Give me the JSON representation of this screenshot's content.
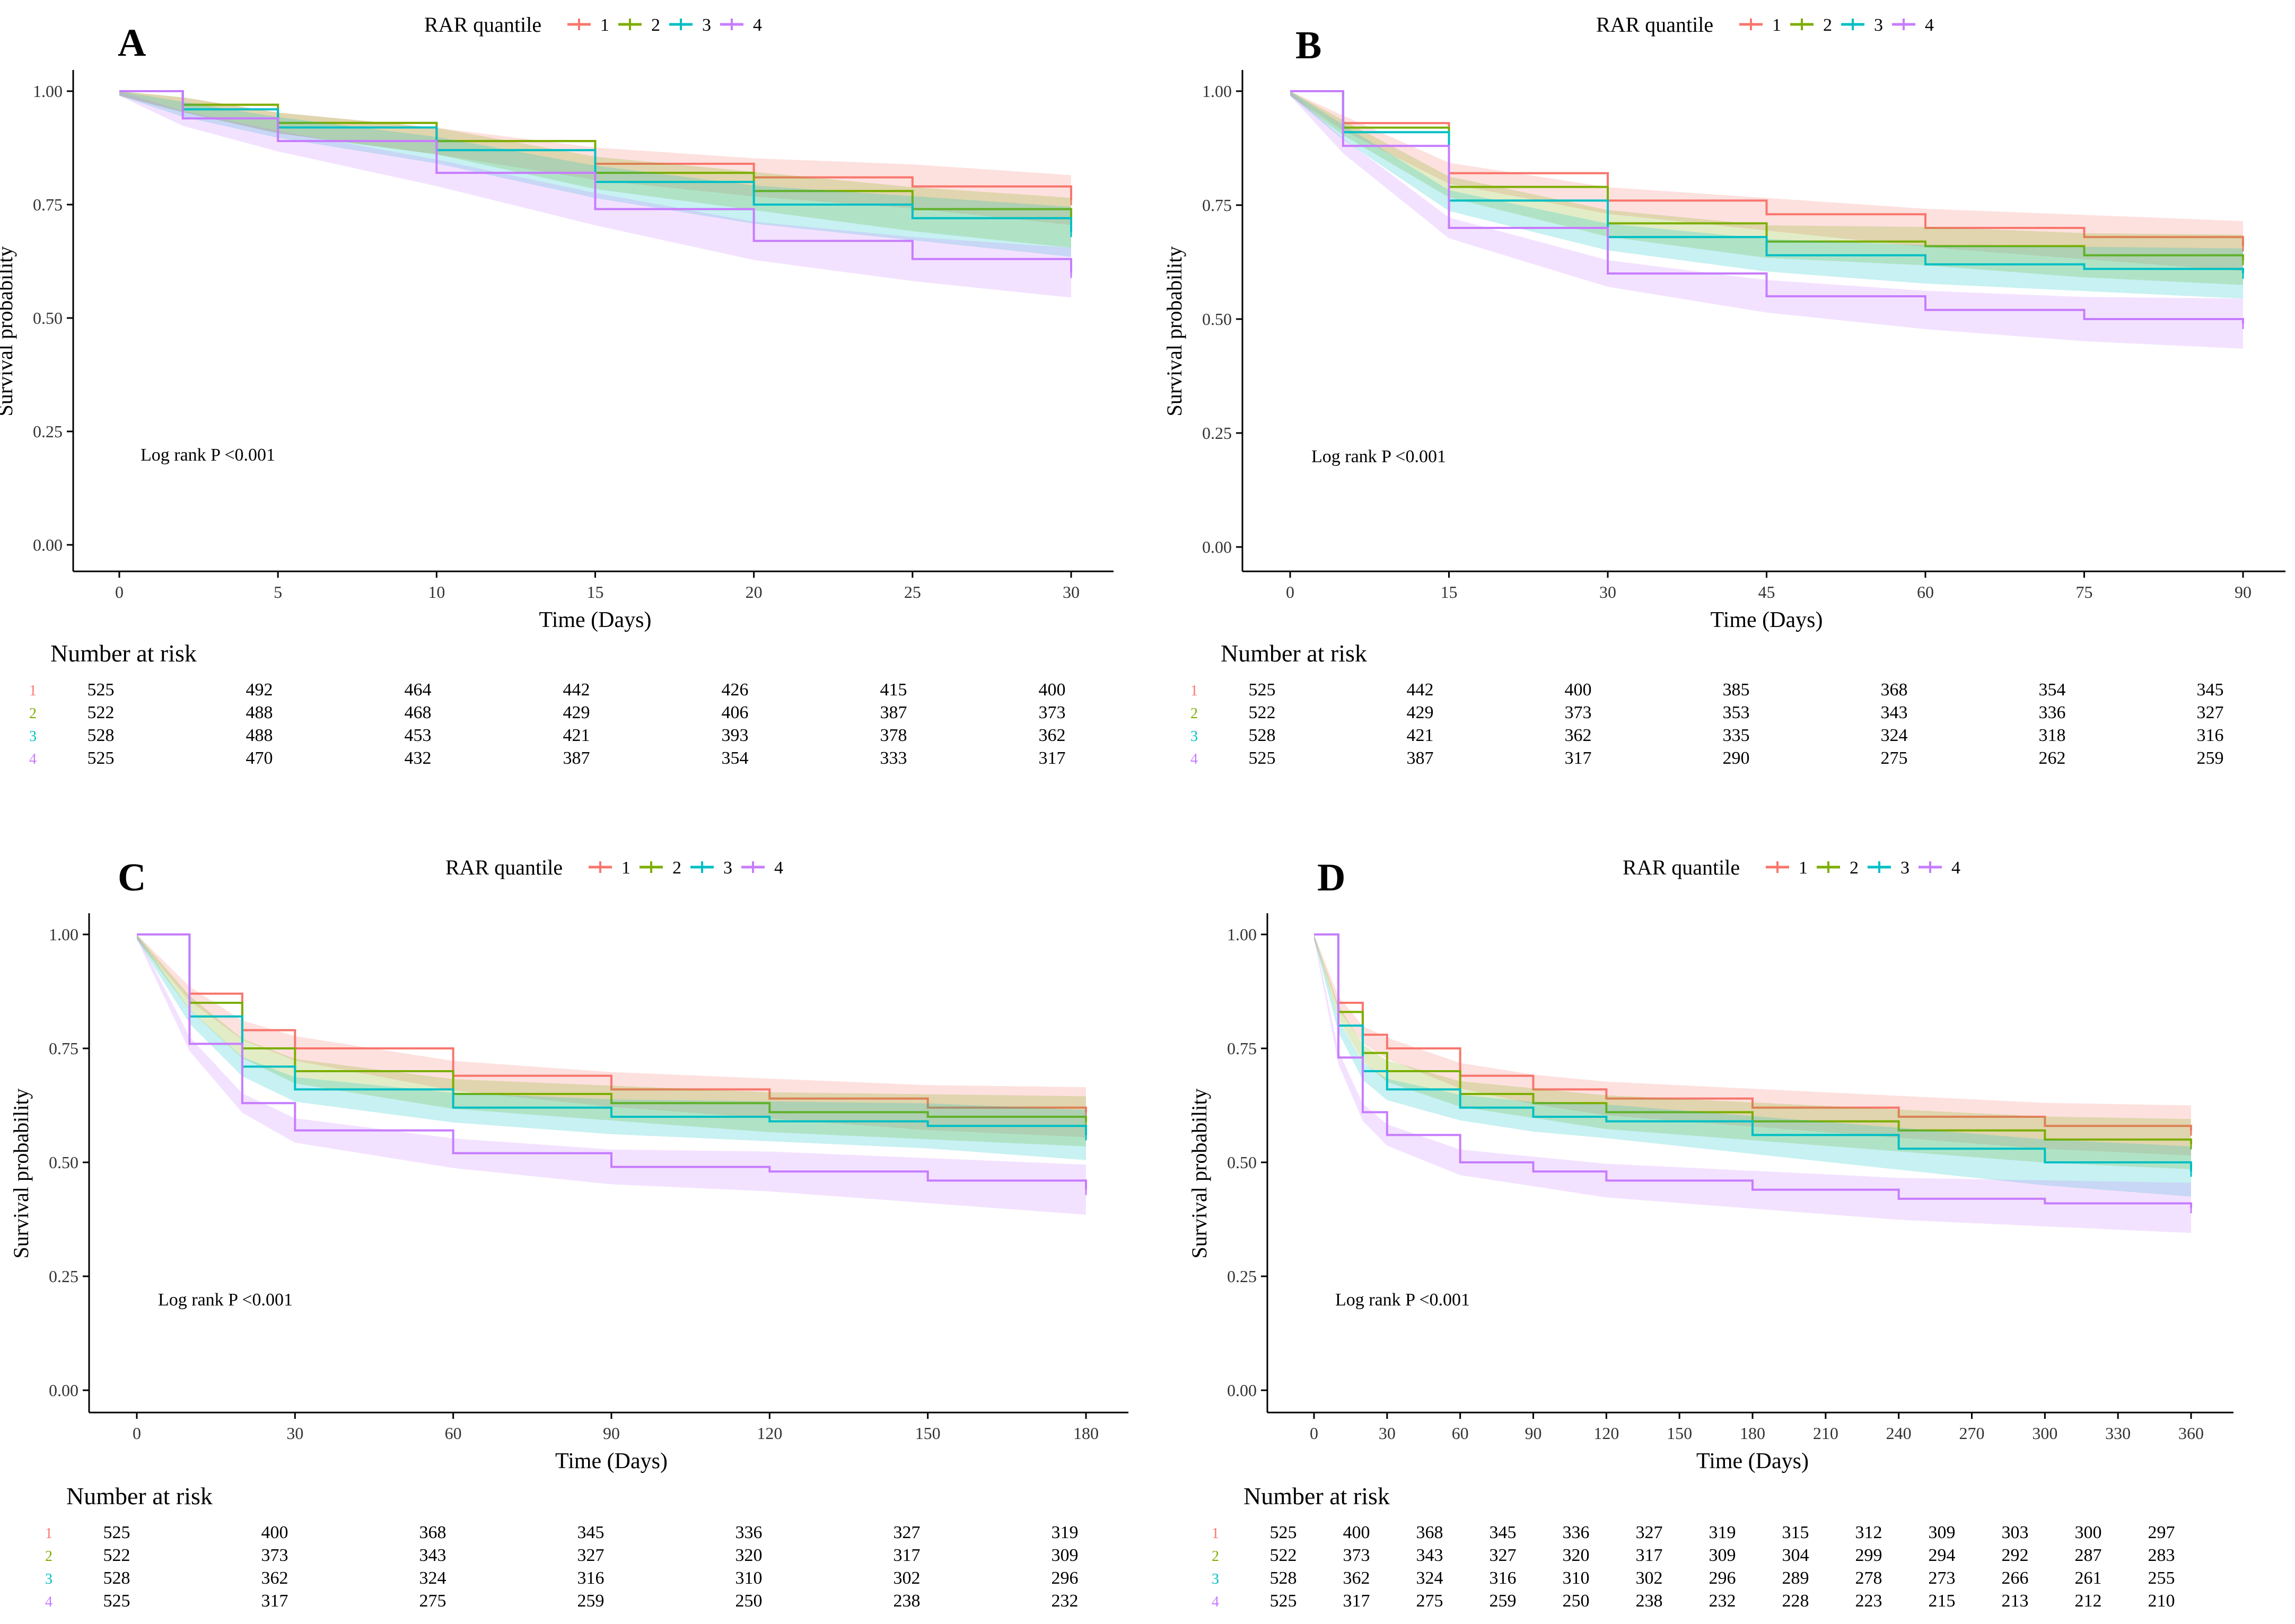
{
  "figure": {
    "legend_title": "RAR quantile",
    "risk_title": "Number at risk",
    "series_colors": {
      "1": "#F8766D",
      "2": "#7CAE00",
      "3": "#00BFC4",
      "4": "#C77CFF"
    }
  },
  "chart_data": [
    {
      "type": "line",
      "panel": "A",
      "title": "",
      "xlabel": "Time (Days)",
      "ylabel": "Survival probability",
      "xlim": [
        0,
        30
      ],
      "ylim": [
        0,
        1
      ],
      "x_ticks": [
        0,
        5,
        10,
        15,
        20,
        25,
        30
      ],
      "x_tick_labels": [
        "0",
        "5",
        "10",
        "15",
        "20",
        "25",
        "30"
      ],
      "y_ticks": [
        0,
        0.25,
        0.5,
        0.75,
        1
      ],
      "y_tick_labels": [
        "0.00",
        "0.25",
        "0.50",
        "0.75",
        "1.00"
      ],
      "legend_title": "RAR quantile",
      "legend": [
        "1",
        "2",
        "3",
        "4"
      ],
      "annotation": "Log rank P <0.001",
      "series": [
        {
          "name": "1",
          "x": [
            0,
            2,
            5,
            10,
            15,
            20,
            25,
            30
          ],
          "values": [
            1.0,
            0.97,
            0.93,
            0.89,
            0.84,
            0.81,
            0.79,
            0.76
          ]
        },
        {
          "name": "2",
          "x": [
            0,
            2,
            5,
            10,
            15,
            20,
            25,
            30
          ],
          "values": [
            1.0,
            0.97,
            0.93,
            0.89,
            0.82,
            0.78,
            0.74,
            0.71
          ]
        },
        {
          "name": "3",
          "x": [
            0,
            2,
            5,
            10,
            15,
            20,
            25,
            30
          ],
          "values": [
            1.0,
            0.96,
            0.92,
            0.87,
            0.8,
            0.75,
            0.72,
            0.69
          ]
        },
        {
          "name": "4",
          "x": [
            0,
            2,
            5,
            10,
            15,
            20,
            25,
            30
          ],
          "values": [
            1.0,
            0.94,
            0.89,
            0.82,
            0.74,
            0.67,
            0.63,
            0.6
          ]
        }
      ],
      "risk_table": {
        "labels": [
          "1",
          "2",
          "3",
          "4"
        ],
        "times": [
          0,
          5,
          10,
          15,
          20,
          25,
          30
        ],
        "rows": [
          [
            "525",
            "492",
            "464",
            "442",
            "426",
            "415",
            "400"
          ],
          [
            "522",
            "488",
            "468",
            "429",
            "406",
            "387",
            "373"
          ],
          [
            "528",
            "488",
            "453",
            "421",
            "393",
            "378",
            "362"
          ],
          [
            "525",
            "470",
            "432",
            "387",
            "354",
            "333",
            "317"
          ]
        ]
      }
    },
    {
      "type": "line",
      "panel": "B",
      "title": "",
      "xlabel": "Time (Days)",
      "ylabel": "Survival probability",
      "xlim": [
        0,
        90
      ],
      "ylim": [
        0,
        1
      ],
      "x_ticks": [
        0,
        15,
        30,
        45,
        60,
        75,
        90
      ],
      "x_tick_labels": [
        "0",
        "15",
        "30",
        "45",
        "60",
        "75",
        "90"
      ],
      "y_ticks": [
        0,
        0.25,
        0.5,
        0.75,
        1
      ],
      "y_tick_labels": [
        "0.00",
        "0.25",
        "0.50",
        "0.75",
        "1.00"
      ],
      "legend_title": "RAR quantile",
      "legend": [
        "1",
        "2",
        "3",
        "4"
      ],
      "annotation": "Log rank P <0.001",
      "series": [
        {
          "name": "1",
          "x": [
            0,
            5,
            15,
            30,
            45,
            60,
            75,
            90
          ],
          "values": [
            1.0,
            0.93,
            0.82,
            0.76,
            0.73,
            0.7,
            0.68,
            0.66
          ]
        },
        {
          "name": "2",
          "x": [
            0,
            5,
            15,
            30,
            45,
            60,
            75,
            90
          ],
          "values": [
            1.0,
            0.92,
            0.79,
            0.71,
            0.67,
            0.66,
            0.64,
            0.63
          ]
        },
        {
          "name": "3",
          "x": [
            0,
            5,
            15,
            30,
            45,
            60,
            75,
            90
          ],
          "values": [
            1.0,
            0.91,
            0.76,
            0.68,
            0.64,
            0.62,
            0.61,
            0.6
          ]
        },
        {
          "name": "4",
          "x": [
            0,
            5,
            15,
            30,
            45,
            60,
            75,
            90
          ],
          "values": [
            1.0,
            0.88,
            0.7,
            0.6,
            0.55,
            0.52,
            0.5,
            0.49
          ]
        }
      ],
      "risk_table": {
        "labels": [
          "1",
          "2",
          "3",
          "4"
        ],
        "times": [
          0,
          15,
          30,
          45,
          60,
          75,
          90
        ],
        "rows": [
          [
            "525",
            "442",
            "400",
            "385",
            "368",
            "354",
            "345"
          ],
          [
            "522",
            "429",
            "373",
            "353",
            "343",
            "336",
            "327"
          ],
          [
            "528",
            "421",
            "362",
            "335",
            "324",
            "318",
            "316"
          ],
          [
            "525",
            "387",
            "317",
            "290",
            "275",
            "262",
            "259"
          ]
        ]
      }
    },
    {
      "type": "line",
      "panel": "C",
      "title": "",
      "xlabel": "Time (Days)",
      "ylabel": "Survival probability",
      "xlim": [
        0,
        180
      ],
      "ylim": [
        0,
        1
      ],
      "x_ticks": [
        0,
        30,
        60,
        90,
        120,
        150,
        180
      ],
      "x_tick_labels": [
        "0",
        "30",
        "60",
        "90",
        "120",
        "150",
        "180"
      ],
      "y_ticks": [
        0,
        0.25,
        0.5,
        0.75,
        1
      ],
      "y_tick_labels": [
        "0.00",
        "0.25",
        "0.50",
        "0.75",
        "1.00"
      ],
      "legend_title": "RAR quantile",
      "legend": [
        "1",
        "2",
        "3",
        "4"
      ],
      "annotation": "Log rank P <0.001",
      "series": [
        {
          "name": "1",
          "x": [
            0,
            10,
            20,
            30,
            60,
            90,
            120,
            150,
            180
          ],
          "values": [
            1.0,
            0.87,
            0.79,
            0.75,
            0.69,
            0.66,
            0.64,
            0.62,
            0.61
          ]
        },
        {
          "name": "2",
          "x": [
            0,
            10,
            20,
            30,
            60,
            90,
            120,
            150,
            180
          ],
          "values": [
            1.0,
            0.85,
            0.75,
            0.7,
            0.65,
            0.63,
            0.61,
            0.6,
            0.59
          ]
        },
        {
          "name": "3",
          "x": [
            0,
            10,
            20,
            30,
            60,
            90,
            120,
            150,
            180
          ],
          "values": [
            1.0,
            0.82,
            0.71,
            0.66,
            0.62,
            0.6,
            0.59,
            0.58,
            0.56
          ]
        },
        {
          "name": "4",
          "x": [
            0,
            10,
            20,
            30,
            60,
            90,
            120,
            150,
            180
          ],
          "values": [
            1.0,
            0.76,
            0.63,
            0.57,
            0.52,
            0.49,
            0.48,
            0.46,
            0.44
          ]
        }
      ],
      "risk_table": {
        "labels": [
          "1",
          "2",
          "3",
          "4"
        ],
        "times": [
          0,
          30,
          60,
          90,
          120,
          150,
          180
        ],
        "rows": [
          [
            "525",
            "400",
            "368",
            "345",
            "336",
            "327",
            "319"
          ],
          [
            "522",
            "373",
            "343",
            "327",
            "320",
            "317",
            "309"
          ],
          [
            "528",
            "362",
            "324",
            "316",
            "310",
            "302",
            "296"
          ],
          [
            "525",
            "317",
            "275",
            "259",
            "250",
            "238",
            "232"
          ]
        ]
      }
    },
    {
      "type": "line",
      "panel": "D",
      "title": "",
      "xlabel": "Time (Days)",
      "ylabel": "Survival probability",
      "xlim": [
        0,
        360
      ],
      "ylim": [
        0,
        1
      ],
      "x_ticks": [
        0,
        30,
        60,
        90,
        120,
        150,
        180,
        210,
        240,
        270,
        300,
        330,
        360
      ],
      "x_tick_labels": [
        "0",
        "30",
        "60",
        "90",
        "120",
        "150",
        "180",
        "210",
        "240",
        "270",
        "300",
        "330",
        "360"
      ],
      "y_ticks": [
        0,
        0.25,
        0.5,
        0.75,
        1
      ],
      "y_tick_labels": [
        "0.00",
        "0.25",
        "0.50",
        "0.75",
        "1.00"
      ],
      "legend_title": "RAR quantile",
      "legend": [
        "1",
        "2",
        "3",
        "4"
      ],
      "annotation": "Log rank P <0.001",
      "series": [
        {
          "name": "1",
          "x": [
            0,
            10,
            20,
            30,
            60,
            90,
            120,
            180,
            240,
            300,
            360
          ],
          "values": [
            1.0,
            0.85,
            0.78,
            0.75,
            0.69,
            0.66,
            0.64,
            0.62,
            0.6,
            0.58,
            0.57
          ]
        },
        {
          "name": "2",
          "x": [
            0,
            10,
            20,
            30,
            60,
            90,
            120,
            180,
            240,
            300,
            360
          ],
          "values": [
            1.0,
            0.83,
            0.74,
            0.7,
            0.65,
            0.63,
            0.61,
            0.59,
            0.57,
            0.55,
            0.54
          ]
        },
        {
          "name": "3",
          "x": [
            0,
            10,
            20,
            30,
            60,
            90,
            120,
            180,
            240,
            300,
            360
          ],
          "values": [
            1.0,
            0.8,
            0.7,
            0.66,
            0.62,
            0.6,
            0.59,
            0.56,
            0.53,
            0.5,
            0.48
          ]
        },
        {
          "name": "4",
          "x": [
            0,
            10,
            20,
            30,
            60,
            90,
            120,
            180,
            240,
            300,
            360
          ],
          "values": [
            1.0,
            0.73,
            0.61,
            0.56,
            0.5,
            0.48,
            0.46,
            0.44,
            0.42,
            0.41,
            0.4
          ]
        }
      ],
      "risk_table": {
        "labels": [
          "1",
          "2",
          "3",
          "4"
        ],
        "times": [
          0,
          30,
          60,
          90,
          120,
          150,
          180,
          210,
          240,
          270,
          300,
          330,
          360
        ],
        "rows": [
          [
            "525",
            "400",
            "368",
            "345",
            "336",
            "327",
            "319",
            "315",
            "312",
            "309",
            "303",
            "300",
            "297"
          ],
          [
            "522",
            "373",
            "343",
            "327",
            "320",
            "317",
            "309",
            "304",
            "299",
            "294",
            "292",
            "287",
            "283"
          ],
          [
            "528",
            "362",
            "324",
            "316",
            "310",
            "302",
            "296",
            "289",
            "278",
            "273",
            "266",
            "261",
            "255"
          ],
          [
            "525",
            "317",
            "275",
            "259",
            "250",
            "238",
            "232",
            "228",
            "223",
            "215",
            "213",
            "212",
            "210"
          ]
        ]
      }
    }
  ]
}
